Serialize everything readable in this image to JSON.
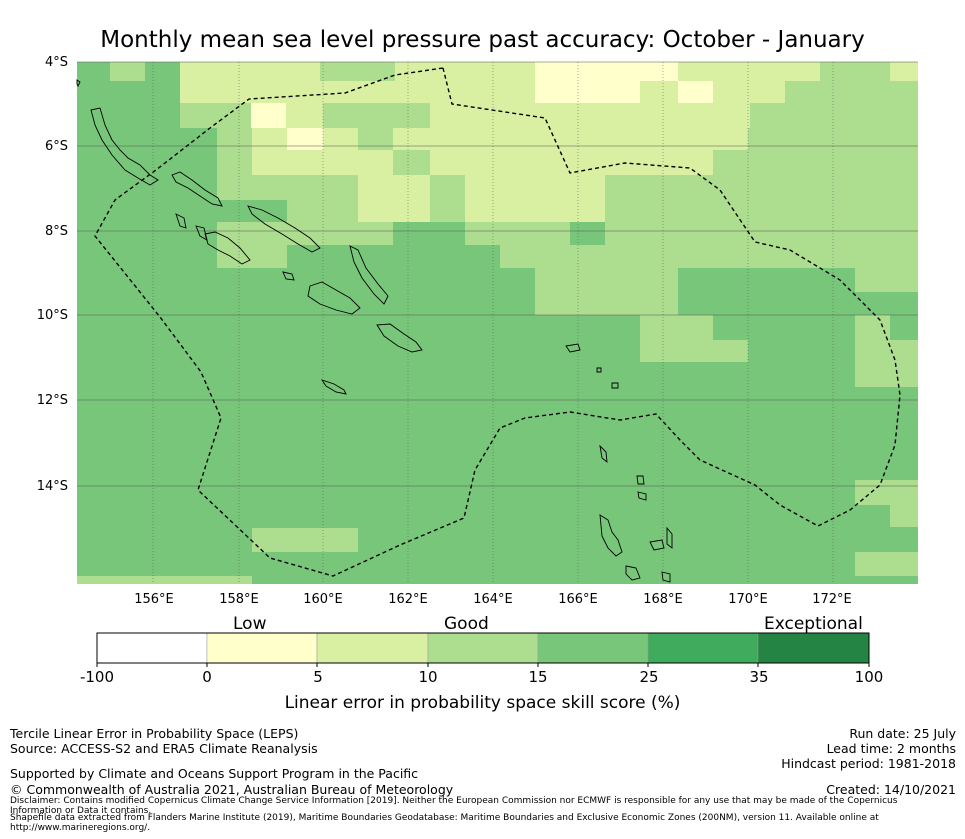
{
  "title": "Monthly mean sea level pressure past accuracy: October - January",
  "map": {
    "lat_labels": [
      "4°S",
      "6°S",
      "8°S",
      "10°S",
      "12°S",
      "14°S"
    ],
    "lon_labels": [
      "156°E",
      "158°E",
      "160°E",
      "162°E",
      "164°E",
      "166°E",
      "168°E",
      "170°E",
      "172°E"
    ],
    "lat_range": [
      -16.3,
      -4.0
    ],
    "lon_range": [
      154.1,
      173.9
    ],
    "grid": true,
    "boundary": "dashed line"
  },
  "colorbar": {
    "category_labels": [
      "Low",
      "Good",
      "Exceptional"
    ],
    "ticks": [
      "-100",
      "0",
      "5",
      "10",
      "15",
      "25",
      "35",
      "100"
    ],
    "colors": [
      "#ffffff",
      "#ffffcc",
      "#d9f0a3",
      "#addd8e",
      "#78c679",
      "#41ab5d",
      "#238443"
    ],
    "title": "Linear error in probability space skill score (%)"
  },
  "footer": {
    "left_line1": "Tercile Linear Error in Probability Space (LEPS)",
    "left_line2": "Source: ACCESS-S2 and ERA5 Climate Reanalysis",
    "supported": "Supported by Climate and Oceans Support Program in the Pacific",
    "copyright": "© Commonwealth of Australia 2021, Australian Bureau of Meteorology",
    "run_date": "Run date: 25 July",
    "lead_time": "Lead time: 2 months",
    "hindcast": "Hindcast period: 1981-2018",
    "created": "Created: 14/10/2021",
    "disclaimer1": "Disclaimer: Contains modified Copernicus Climate Change Service Information [2019]. Neither the European Commission nor ECMWF is responsible for any use that may be made of the Copernicus",
    "disclaimer2": "Information or Data it contains.",
    "shapefile1": "Shapefile data extracted from Flanders Marine Institute (2019), Maritime Boundaries Geodatabase: Maritime Boundaries and Exclusive Economic Zones (200NM), version 11. Available online at",
    "shapefile2": "http://www.marineregions.org/."
  }
}
